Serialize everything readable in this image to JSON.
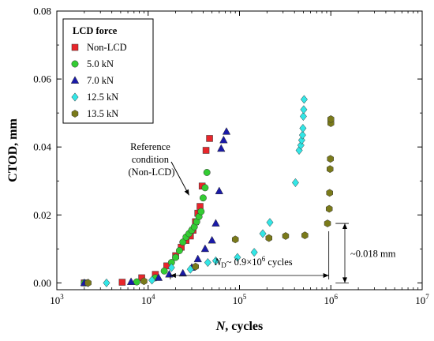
{
  "chart_data": {
    "type": "scatter",
    "xlabel_italic": "N",
    "xlabel_rest": ", cycles",
    "ylabel": "CTOD, mm",
    "x_scale": "log",
    "xlim": [
      1000,
      10000000
    ],
    "ylim": [
      -0.002,
      0.08
    ],
    "x_ticks": [
      1000,
      10000,
      100000,
      1000000,
      10000000
    ],
    "x_tick_labels": [
      {
        "base": "10",
        "exp": "3"
      },
      {
        "base": "10",
        "exp": "4"
      },
      {
        "base": "10",
        "exp": "5"
      },
      {
        "base": "10",
        "exp": "6"
      },
      {
        "base": "10",
        "exp": "7"
      }
    ],
    "y_ticks": [
      0.0,
      0.02,
      0.04,
      0.06,
      0.08
    ],
    "y_tick_labels": [
      "0.00",
      "0.02",
      "0.04",
      "0.06",
      "0.08"
    ],
    "legend": {
      "title": "LCD force",
      "placement": "top-left"
    },
    "series": [
      {
        "name": "Non-LCD",
        "marker": "square",
        "color": "#e8262b",
        "x": [
          2000,
          5200,
          8500,
          12000,
          16000,
          20000,
          23000,
          26000,
          29000,
          31000,
          33000,
          35000,
          37000,
          39000,
          43000,
          47000
        ],
        "y": [
          0.0,
          0.0002,
          0.0015,
          0.0025,
          0.005,
          0.008,
          0.0105,
          0.0125,
          0.0138,
          0.0155,
          0.018,
          0.0205,
          0.0225,
          0.0285,
          0.039,
          0.0425
        ]
      },
      {
        "name": "5.0 kN",
        "marker": "circle",
        "color": "#33cc33",
        "x": [
          2000,
          7500,
          12000,
          15000,
          18000,
          20000,
          22000,
          24000,
          26000,
          28000,
          30000,
          32000,
          34000,
          36000,
          38000,
          40000,
          42000,
          44000
        ],
        "y": [
          0.0,
          0.0003,
          0.0015,
          0.0035,
          0.006,
          0.0075,
          0.0095,
          0.012,
          0.0135,
          0.0145,
          0.0155,
          0.0165,
          0.018,
          0.0195,
          0.021,
          0.025,
          0.028,
          0.0325
        ]
      },
      {
        "name": "7.0 kN",
        "marker": "triangle",
        "color": "#1a1aa8",
        "x": [
          2000,
          6500,
          13000,
          17000,
          24000,
          30000,
          35000,
          42000,
          50000,
          55000,
          60000,
          63000,
          67000,
          72000
        ],
        "y": [
          0.0,
          0.0003,
          0.0015,
          0.0025,
          0.0028,
          0.0045,
          0.007,
          0.01,
          0.0125,
          0.0175,
          0.027,
          0.0395,
          0.042,
          0.0445
        ]
      },
      {
        "name": "12.5 kN",
        "marker": "diamond",
        "color": "#33e6e6",
        "x": [
          2200,
          3500,
          11000,
          18000,
          29000,
          45000,
          55000,
          95000,
          145000,
          180000,
          215000,
          410000,
          450000,
          470000,
          480000,
          490000,
          495000,
          500000,
          505000,
          510000
        ],
        "y": [
          0.0,
          0.0,
          0.0008,
          0.0045,
          0.004,
          0.006,
          0.0065,
          0.0075,
          0.009,
          0.0145,
          0.0178,
          0.0295,
          0.039,
          0.0405,
          0.042,
          0.0435,
          0.0455,
          0.049,
          0.051,
          0.054
        ]
      },
      {
        "name": "13.5 kN",
        "marker": "hexagon",
        "color": "#7a7a1a",
        "x": [
          2200,
          9000,
          33000,
          90000,
          210000,
          320000,
          520000,
          920000,
          960000,
          970000,
          980000,
          990000,
          1000000,
          1000000
        ],
        "y": [
          0.0,
          0.0005,
          0.0048,
          0.0128,
          0.0132,
          0.0138,
          0.014,
          0.0175,
          0.0218,
          0.0265,
          0.0335,
          0.0365,
          0.047,
          0.0482
        ]
      }
    ],
    "annotations": {
      "reference_lines": [
        "Reference",
        "condition",
        "(Non-LCD)"
      ],
      "nd_italic": "N",
      "nd_sub": "D",
      "nd_mid": "~ 0.9×10",
      "nd_sup": "6",
      "nd_end": " cycles",
      "nd_range": [
        17500,
        950000
      ],
      "ctod_label": "~0.018 mm",
      "ctod_range": [
        0.0,
        0.0175
      ]
    }
  }
}
